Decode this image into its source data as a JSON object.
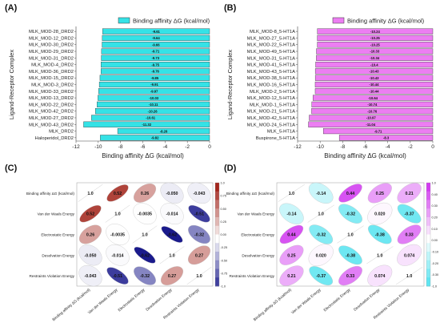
{
  "panels": [
    "(A)",
    "(B)",
    "(C)",
    "(D)"
  ],
  "chart_data": [
    {
      "panel": "(A)",
      "type": "bar",
      "orientation": "horizontal",
      "legend": "Binding affinity ΔG (kcal/mol)",
      "legend_position": "top",
      "color": "#35e2e6",
      "xlabel": "Binding affinity ΔG (kcal/mol)",
      "ylabel": "Ligand-Receptor Complex",
      "xlim": [
        -12,
        0
      ],
      "xticks": [
        -12,
        -10,
        -8,
        -6,
        -4,
        -2,
        0
      ],
      "categories": [
        "MLK_MOD-28_DRD2",
        "MLK_MOD-12_DRD2",
        "MLK_MOD-30_DRD2",
        "MLK_MOD-29_DRD2",
        "MLK_MOD-31_DRD2",
        "MLK_MOD-4_DRD2",
        "MLK_MOD-36_DRD2",
        "MLK_MOD-15_DRD2",
        "MLK_MOD-3_DRD2",
        "MLK_MOD-33_DRD2",
        "MLK_MOD-13_DRD2",
        "MLK_MOD-22_DRD2",
        "MLK_MOD-42_DRD2",
        "MLK_MOD-27_DRD2",
        "MLK_MOD-43_DRD2",
        "MLK_DRD2",
        "Haloperidol_DRD2"
      ],
      "values": [
        -9.61,
        -9.64,
        -9.66,
        -9.71,
        -9.73,
        -9.75,
        -9.76,
        -9.85,
        -9.91,
        -9.97,
        -10.03,
        -10.11,
        -10.26,
        -10.61,
        -11.32,
        -8.26,
        -9.82
      ],
      "labels": [
        "-9.61",
        "-9.64",
        "-9.66",
        "-9.71",
        "-9.73",
        "-9.75",
        "-9.76",
        "-9.85",
        "-9.91",
        "-9.97",
        "-10.03",
        "-10.11",
        "-10.26",
        "-10.61",
        "-11.32",
        "-8.26",
        "-9.82"
      ]
    },
    {
      "panel": "(B)",
      "type": "bar",
      "orientation": "horizontal",
      "legend": "Binding affinity ΔG (kcal/mol)",
      "legend_position": "top",
      "color": "#ec7ef2",
      "xlabel": "Binding affinity ΔG (kcal/mol)",
      "ylabel": "Ligand-Receptor Complex",
      "xlim": [
        -12,
        0
      ],
      "xticks": [
        -12,
        -10,
        -8,
        -6,
        -4,
        -2,
        0
      ],
      "categories": [
        "MLK_MOD-8_5-HT1A",
        "MLK_MOD-27_5-HT1A",
        "MLK_MOD-22_5-HT1A",
        "MLK_MOD-49_5-HT1A",
        "MLK_MOD-31_5-HT1A",
        "MLK_MOD-41_5-HT1A",
        "MLK_MOD-43_5-HT1A",
        "MLK_MOD-38_5-HT1A",
        "MLK_MOD-16_5-HT1A",
        "MLK_MOD-2_5-HT1A",
        "MLK_MOD-12_5-HT1A",
        "MLK_MOD-1_5-HT1A",
        "MLK_MOD-21_5-HT1A",
        "MLK_MOD-42_5-HT1A",
        "MLK_MOD-24_5-HT1A",
        "MLK_5-HT1A",
        "Buspirone_5-HT1A"
      ],
      "values": [
        -10.24,
        -10.25,
        -10.25,
        -10.33,
        -10.34,
        -10.4,
        -10.43,
        -10.43,
        -10.44,
        -10.44,
        -10.64,
        -10.74,
        -10.76,
        -10.97,
        -11.04,
        -9.71,
        -8.3
      ],
      "labels": [
        "-10.24",
        "-10.25",
        "-10.25",
        "-10.33",
        "-10.34",
        "-10.4",
        "-10.43",
        "-10.43",
        "-10.44",
        "-10.44",
        "-10.64",
        "-10.74",
        "-10.76",
        "-10.97",
        "-11.04",
        "-9.71",
        "-8.3"
      ]
    },
    {
      "panel": "(C)",
      "type": "heatmap",
      "style": "correlation ellipses",
      "colorscale": [
        "#1a1a8c",
        "#ffffff",
        "#a3261c"
      ],
      "variables": [
        "Binding affinity ΔG (kcal/mol)",
        "Van der Waals Energy",
        "Electrostatic Energy",
        "Desolvation Energy",
        "Restraints Violation Energy"
      ],
      "matrix": [
        [
          1.0,
          0.52,
          0.26,
          -0.05,
          -0.043
        ],
        [
          0.52,
          1.0,
          -0.0035,
          -0.014,
          -0.51
        ],
        [
          0.26,
          -0.0035,
          1.0,
          -0.62,
          -0.32
        ],
        [
          -0.05,
          -0.014,
          -0.62,
          1.0,
          0.27
        ],
        [
          -0.043,
          -0.51,
          -0.32,
          0.27,
          1.0
        ]
      ],
      "cell_labels": [
        [
          "1.0",
          "0.52",
          "0.26",
          "-0.050",
          "-0.043"
        ],
        [
          "0.52",
          "1.0",
          "-0.0035",
          "-0.014",
          "-0.51"
        ],
        [
          "0.26",
          "-0.0035",
          "1.0",
          "-0.62",
          "-0.32"
        ],
        [
          "-0.050",
          "-0.014",
          "-0.62",
          "1.0",
          "0.27"
        ],
        [
          "-0.043",
          "-0.51",
          "-0.32",
          "0.27",
          "1.0"
        ]
      ],
      "colorbar_ticks": [
        "1.0",
        "0.75",
        "0.50",
        "0.25",
        "0.00",
        "-0.25",
        "-0.50",
        "-0.75",
        "-1.0"
      ]
    },
    {
      "panel": "(D)",
      "type": "heatmap",
      "style": "correlation ellipses",
      "colorscale": [
        "#3fe0ee",
        "#ffffff",
        "#d23cf0"
      ],
      "variables": [
        "Binding affinity ΔG (kcal/mol)",
        "Van der Waals Energy",
        "Electrostatic Energy",
        "Desolvation Energy",
        "Restraints Violation Energy"
      ],
      "matrix": [
        [
          1.0,
          -0.14,
          0.44,
          0.25,
          0.21
        ],
        [
          -0.14,
          1.0,
          -0.32,
          0.02,
          -0.37
        ],
        [
          0.44,
          -0.32,
          1.0,
          -0.38,
          0.33
        ],
        [
          0.25,
          0.02,
          -0.38,
          1.0,
          0.074
        ],
        [
          0.21,
          -0.37,
          0.33,
          0.074,
          1.0
        ]
      ],
      "cell_labels": [
        [
          "1.0",
          "-0.14",
          "0.44",
          "0.25",
          "0.21"
        ],
        [
          "-0.14",
          "1.0",
          "-0.32",
          "0.020",
          "-0.37"
        ],
        [
          "0.44",
          "-0.32",
          "1.0",
          "-0.38",
          "0.33"
        ],
        [
          "0.25",
          "0.020",
          "-0.38",
          "1.0",
          "0.074"
        ],
        [
          "0.21",
          "-0.37",
          "0.33",
          "0.074",
          "1.0"
        ]
      ],
      "colorbar_ticks": [
        "1.0",
        "0.40",
        "0.30",
        "0.20",
        "0.10",
        "0.00",
        "-0.10",
        "-0.20",
        "-0.30",
        "-1.0"
      ]
    }
  ]
}
